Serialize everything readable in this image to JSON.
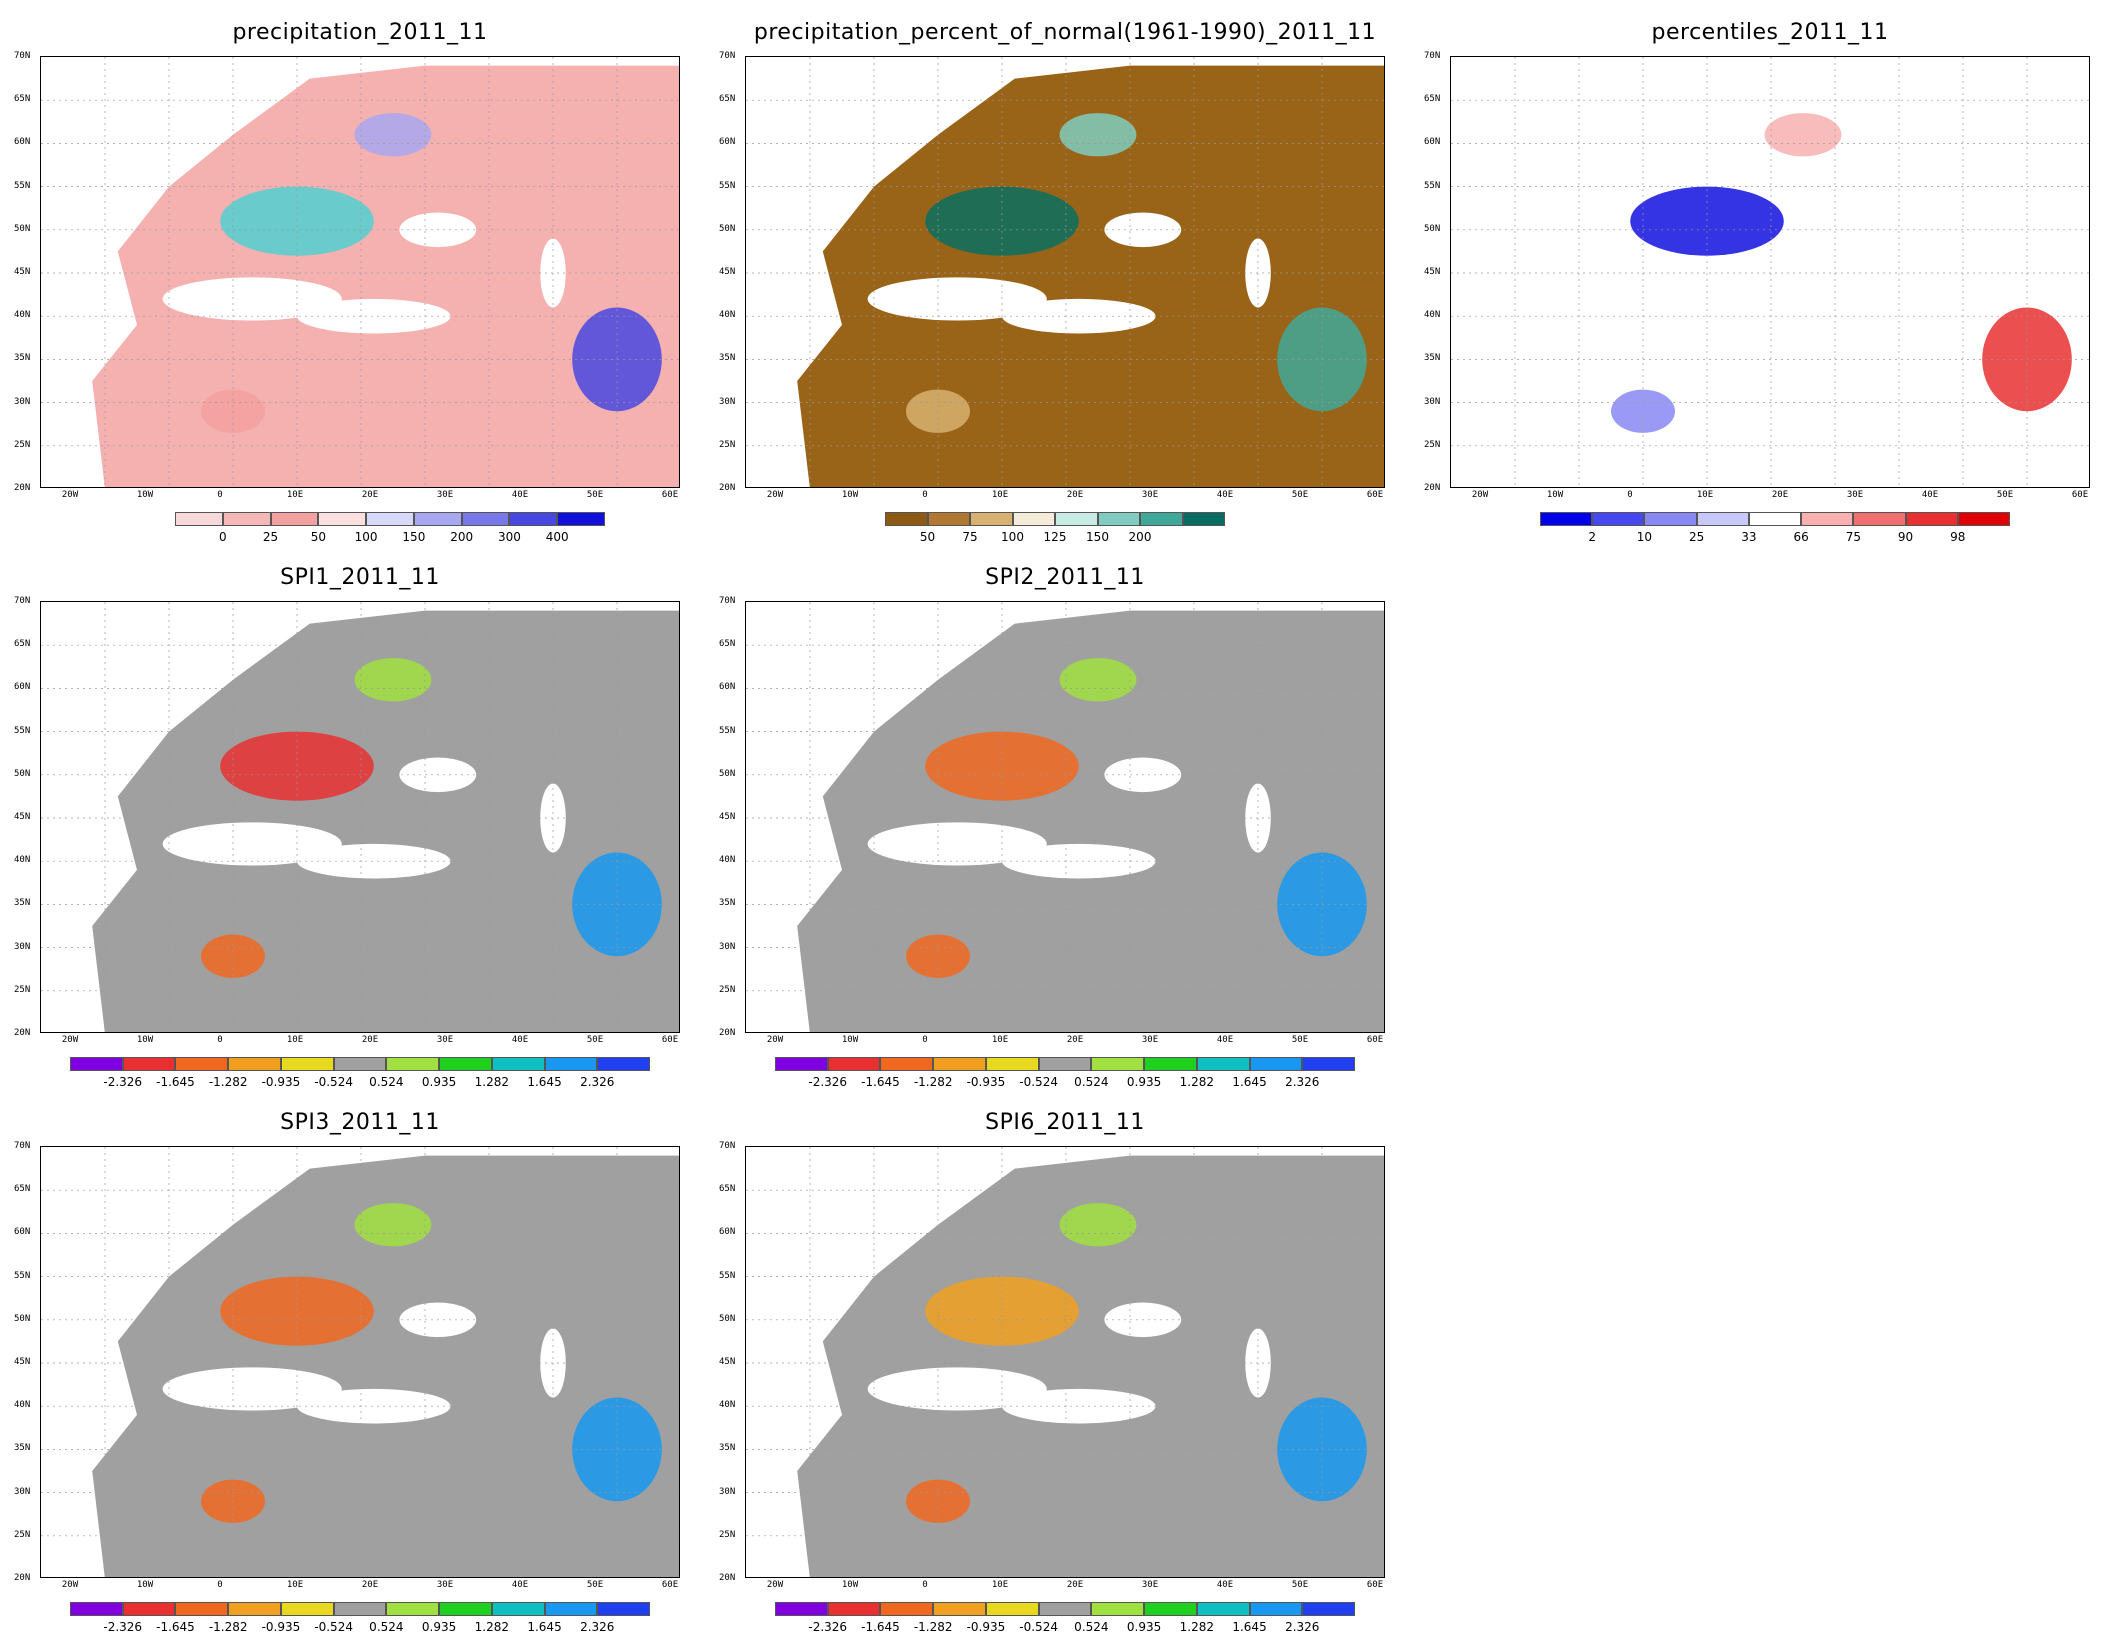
{
  "panels": [
    {
      "id": "precip",
      "title": "precipitation_2011_11",
      "legend_labels": [
        "0",
        "25",
        "50",
        "100",
        "150",
        "200",
        "300",
        "400"
      ],
      "legend_colors": [
        "#f6d8d8",
        "#f5b8b8",
        "#f3a0a0",
        "#fbe0e0",
        "#d8d8f8",
        "#a8a8f0",
        "#7878e8",
        "#4848e0",
        "#1010d8"
      ],
      "fill": "#f5b0b0",
      "accent": "#50d0d0"
    },
    {
      "id": "pctnorm",
      "title": "precipitation_percent_of_normal(1961-1990)_2011_11",
      "legend_labels": [
        "50",
        "75",
        "100",
        "125",
        "150",
        "200"
      ],
      "legend_colors": [
        "#8c5a14",
        "#b07830",
        "#d8b070",
        "#f4ecd8",
        "#c8ece4",
        "#80ccc0",
        "#40a898",
        "#086c60"
      ],
      "fill": "#9a6418",
      "accent": "#0a6e62"
    },
    {
      "id": "percentiles",
      "title": "percentiles_2011_11",
      "legend_labels": [
        "2",
        "10",
        "25",
        "33",
        "66",
        "75",
        "90",
        "98"
      ],
      "legend_colors": [
        "#0000e8",
        "#4848f0",
        "#8888f4",
        "#c8c8f8",
        "#ffffff",
        "#f8b0b0",
        "#f07070",
        "#e83030",
        "#e00000"
      ],
      "fill": "#ffffff",
      "accent": "#1010e0"
    },
    {
      "id": "spi1",
      "title": "SPI1_2011_11",
      "legend_labels": [
        "-2.326",
        "-1.645",
        "-1.282",
        "-0.935",
        "-0.524",
        "0.524",
        "0.935",
        "1.282",
        "1.645",
        "2.326"
      ],
      "legend_colors": [
        "#8000e0",
        "#e83030",
        "#f06820",
        "#f0a020",
        "#e8d820",
        "#a0a0a0",
        "#a0e040",
        "#20d020",
        "#10c0c0",
        "#1898f0",
        "#2040f0"
      ],
      "fill": "#a0a0a0",
      "accent": "#e83030"
    },
    {
      "id": "spi2",
      "title": "SPI2_2011_11",
      "legend_labels": [
        "-2.326",
        "-1.645",
        "-1.282",
        "-0.935",
        "-0.524",
        "0.524",
        "0.935",
        "1.282",
        "1.645",
        "2.326"
      ],
      "legend_colors": [
        "#8000e0",
        "#e83030",
        "#f06820",
        "#f0a020",
        "#e8d820",
        "#a0a0a0",
        "#a0e040",
        "#20d020",
        "#10c0c0",
        "#1898f0",
        "#2040f0"
      ],
      "fill": "#a0a0a0",
      "accent": "#f06820"
    },
    {
      "id": "spi3",
      "title": "SPI3_2011_11",
      "legend_labels": [
        "-2.326",
        "-1.645",
        "-1.282",
        "-0.935",
        "-0.524",
        "0.524",
        "0.935",
        "1.282",
        "1.645",
        "2.326"
      ],
      "legend_colors": [
        "#8000e0",
        "#e83030",
        "#f06820",
        "#f0a020",
        "#e8d820",
        "#a0a0a0",
        "#a0e040",
        "#20d020",
        "#10c0c0",
        "#1898f0",
        "#2040f0"
      ],
      "fill": "#a0a0a0",
      "accent": "#f06820"
    },
    {
      "id": "spi6",
      "title": "SPI6_2011_11",
      "legend_labels": [
        "-2.326",
        "-1.645",
        "-1.282",
        "-0.935",
        "-0.524",
        "0.524",
        "0.935",
        "1.282",
        "1.645",
        "2.326"
      ],
      "legend_colors": [
        "#8000e0",
        "#e83030",
        "#f06820",
        "#f0a020",
        "#e8d820",
        "#a0a0a0",
        "#a0e040",
        "#20d020",
        "#10c0c0",
        "#1898f0",
        "#2040f0"
      ],
      "fill": "#a0a0a0",
      "accent": "#f0a020"
    }
  ],
  "lat_labels": [
    "70N",
    "65N",
    "60N",
    "55N",
    "50N",
    "45N",
    "40N",
    "35N",
    "30N",
    "25N",
    "20N"
  ],
  "lon_labels": [
    "20W",
    "10W",
    "0",
    "10E",
    "20E",
    "30E",
    "40E",
    "50E",
    "60E"
  ]
}
